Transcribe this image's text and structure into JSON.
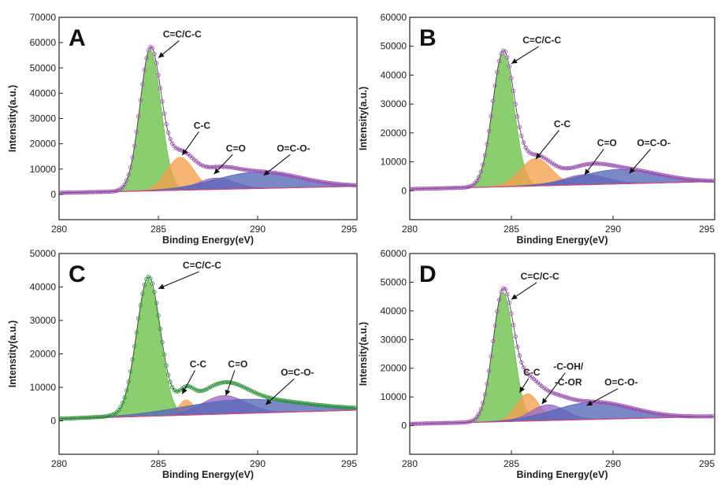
{
  "chart_data": [
    {
      "type": "area",
      "panel": "A",
      "xlabel": "Binding Energy(eV)",
      "ylabel": "Intenstity(a.u.)",
      "xlim": [
        280,
        295
      ],
      "ylim": [
        -10000,
        70000
      ],
      "xticks": [
        "280",
        "285",
        "290",
        "295"
      ],
      "yticks": [
        "0",
        "10000",
        "20000",
        "30000",
        "40000",
        "50000",
        "60000",
        "70000"
      ],
      "peaks": [
        {
          "label": "C=C/C-C",
          "center": 284.6,
          "height": 55500,
          "fwhm": 1.25,
          "color": "#6cbf4a"
        },
        {
          "label": "C-C",
          "center": 286.1,
          "height": 13000,
          "fwhm": 1.6,
          "color": "#f5a04e"
        },
        {
          "label": "C=O",
          "center": 287.9,
          "height": 4500,
          "fwhm": 2.2,
          "color": "#9a6ac2"
        },
        {
          "label": "O=C-O-",
          "center": 290.0,
          "height": 6500,
          "fwhm": 5.0,
          "color": "#5566b8"
        }
      ],
      "annotations": [
        {
          "text": "C=C/C-C",
          "x": 286.2,
          "y": 62000,
          "ax": 285.0,
          "ay": 54000
        },
        {
          "text": "C-C",
          "x": 287.2,
          "y": 26000,
          "ax": 286.2,
          "ay": 15500
        },
        {
          "text": "C=O",
          "x": 288.9,
          "y": 17000,
          "ax": 287.8,
          "ay": 8000
        },
        {
          "text": "O=C-O-",
          "x": 291.8,
          "y": 17000,
          "ax": 290.3,
          "ay": 7500
        }
      ]
    },
    {
      "type": "area",
      "panel": "B",
      "xlabel": "Binding Energy(eV)",
      "ylabel": "Intensity(a.u.)",
      "xlim": [
        280,
        295
      ],
      "ylim": [
        -10000,
        60000
      ],
      "xticks": [
        "280",
        "285",
        "290",
        "295"
      ],
      "yticks": [
        "0",
        "10000",
        "20000",
        "30000",
        "40000",
        "50000",
        "60000"
      ],
      "peaks": [
        {
          "label": "C=C/C-C",
          "center": 284.6,
          "height": 46000,
          "fwhm": 1.25,
          "color": "#6cbf4a"
        },
        {
          "label": "C-C",
          "center": 286.2,
          "height": 9500,
          "fwhm": 1.8,
          "color": "#f5a04e"
        },
        {
          "label": "C=O",
          "center": 288.6,
          "height": 3500,
          "fwhm": 2.5,
          "color": "#9a6ac2"
        },
        {
          "label": "O=C-O-",
          "center": 290.3,
          "height": 5000,
          "fwhm": 4.5,
          "color": "#5566b8"
        }
      ],
      "annotations": [
        {
          "text": "C=C/C-C",
          "x": 286.5,
          "y": 51000,
          "ax": 285.0,
          "ay": 44000
        },
        {
          "text": "C-C",
          "x": 287.5,
          "y": 22000,
          "ax": 286.2,
          "ay": 11000
        },
        {
          "text": "C=O",
          "x": 289.7,
          "y": 15500,
          "ax": 288.6,
          "ay": 5500
        },
        {
          "text": "O=C-O-",
          "x": 292.0,
          "y": 15500,
          "ax": 290.8,
          "ay": 6000
        }
      ]
    },
    {
      "type": "area",
      "panel": "C",
      "xlabel": "Binding Energy(eV)",
      "ylabel": "Intenstity(a.u.)",
      "xlim": [
        280,
        295
      ],
      "ylim": [
        -10000,
        50000
      ],
      "xticks": [
        "280",
        "285",
        "290",
        "295"
      ],
      "yticks": [
        "0",
        "10000",
        "20000",
        "30000",
        "40000",
        "50000"
      ],
      "peaks": [
        {
          "label": "C=C/C-C",
          "center": 284.5,
          "height": 40500,
          "fwhm": 1.4,
          "color": "#6cbf4a"
        },
        {
          "label": "C-C",
          "center": 286.4,
          "height": 4500,
          "fwhm": 0.9,
          "color": "#f5a04e"
        },
        {
          "label": "C=O",
          "center": 288.3,
          "height": 5500,
          "fwhm": 2.6,
          "color": "#9a6ac2"
        },
        {
          "label": "O=C-O-",
          "center": 289.3,
          "height": 4200,
          "fwhm": 7.0,
          "color": "#5566b8"
        }
      ],
      "annotations": [
        {
          "text": "C=C/C-C",
          "x": 287.2,
          "y": 45500,
          "ax": 285.0,
          "ay": 39500
        },
        {
          "text": "C-C",
          "x": 287.0,
          "y": 16000,
          "ax": 286.2,
          "ay": 8000
        },
        {
          "text": "C=O",
          "x": 289.0,
          "y": 16000,
          "ax": 288.4,
          "ay": 7500
        },
        {
          "text": "O=C-O-",
          "x": 292.0,
          "y": 13500,
          "ax": 290.4,
          "ay": 4800
        }
      ]
    },
    {
      "type": "area",
      "panel": "D",
      "xlabel": "Binding Energy(eV)",
      "ylabel": "Intensity(a.u.)",
      "xlim": [
        280,
        295
      ],
      "ylim": [
        -10000,
        60000
      ],
      "xticks": [
        "280",
        "285",
        "290",
        "295"
      ],
      "yticks": [
        "0",
        "10000",
        "20000",
        "30000",
        "40000",
        "50000",
        "60000"
      ],
      "peaks": [
        {
          "label": "C=C/C-C",
          "center": 284.6,
          "height": 45000,
          "fwhm": 1.2,
          "color": "#6cbf4a"
        },
        {
          "label": "C-C",
          "center": 285.8,
          "height": 9500,
          "fwhm": 1.3,
          "color": "#f5a04e"
        },
        {
          "label": "-C-OH/ -C-OR",
          "center": 286.8,
          "height": 5500,
          "fwhm": 2.0,
          "color": "#9a6ac2"
        },
        {
          "label": "O=C-O-",
          "center": 289.0,
          "height": 6000,
          "fwhm": 4.5,
          "color": "#5566b8"
        }
      ],
      "annotations": [
        {
          "text": "C=C/C-C",
          "x": 286.4,
          "y": 51000,
          "ax": 285.0,
          "ay": 44000
        },
        {
          "text": "C-C",
          "x": 286.0,
          "y": 17500,
          "ax": 285.4,
          "ay": 11500
        },
        {
          "text": "-C-OH/",
          "x": 287.8,
          "y": 19500,
          "ax": 286.5,
          "ay": 7500
        },
        {
          "text": "-C-OR",
          "x": 287.8,
          "y": 14000,
          "ax": null,
          "ay": null
        },
        {
          "text": "O=C-O-",
          "x": 290.4,
          "y": 14000,
          "ax": 288.7,
          "ay": 7000
        }
      ]
    }
  ]
}
